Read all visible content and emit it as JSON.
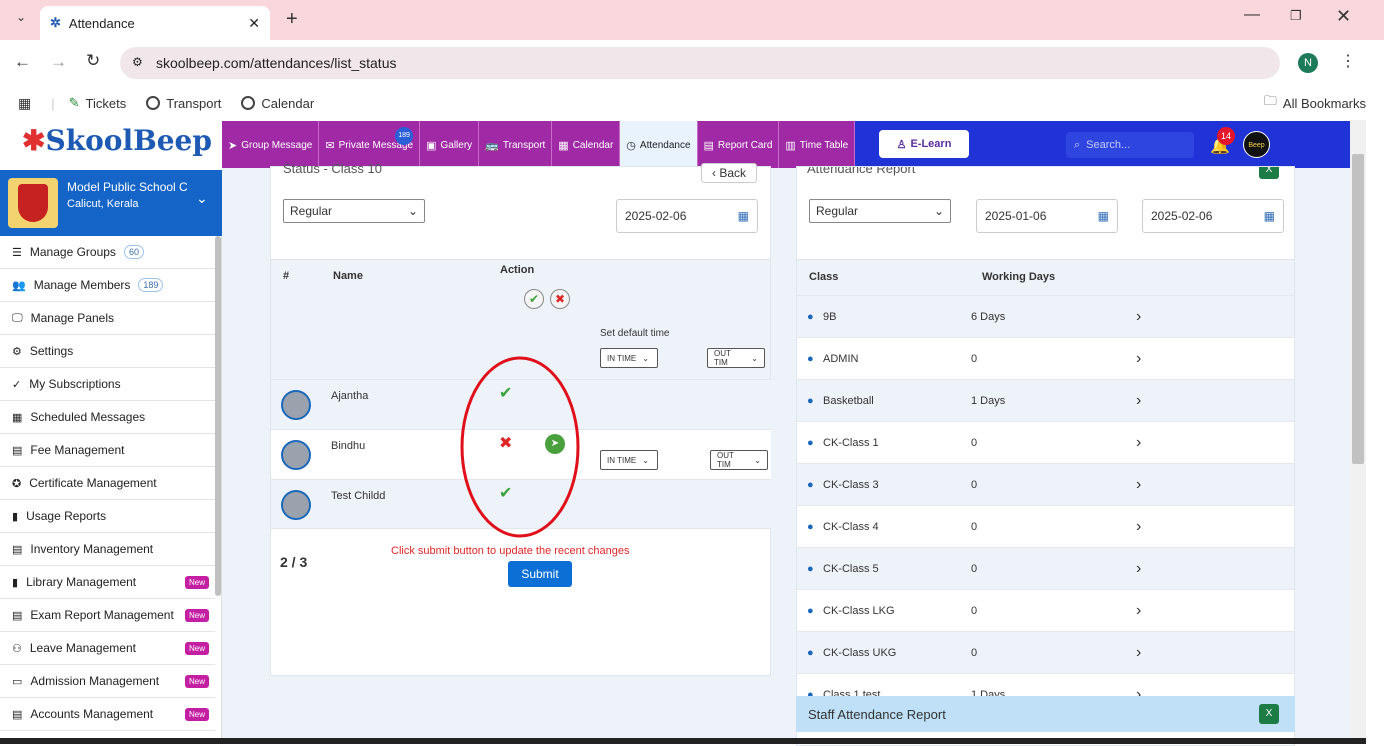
{
  "browser": {
    "tab_title": "Attendance",
    "url": "skoolbeep.com/attendances/list_status",
    "bookmarks": [
      "Tickets",
      "Transport",
      "Calendar"
    ],
    "all_bookmarks": "All Bookmarks",
    "profile_initial": "N"
  },
  "app": {
    "logo": "SkoolBeep",
    "search_placeholder": "Search...",
    "notif_count": "14",
    "avatar_text": "Beep",
    "elearn": "E-Learn"
  },
  "nav": [
    {
      "label": "Group Message",
      "icon": "send-icon"
    },
    {
      "label": "Private Message",
      "icon": "mail-icon",
      "badge": "189"
    },
    {
      "label": "Gallery",
      "icon": "image-icon"
    },
    {
      "label": "Transport",
      "icon": "bus-icon"
    },
    {
      "label": "Calendar",
      "icon": "calendar-icon"
    },
    {
      "label": "Attendance",
      "icon": "clock-icon",
      "active": true
    },
    {
      "label": "Report Card",
      "icon": "document-icon"
    },
    {
      "label": "Time Table",
      "icon": "table-icon"
    }
  ],
  "school": {
    "name": "Model Public School C",
    "location": "Calicut, Kerala"
  },
  "sidebar": [
    {
      "label": "Manage Groups",
      "count": "60",
      "icon": "list-icon"
    },
    {
      "label": "Manage Members",
      "count": "189",
      "icon": "users-icon"
    },
    {
      "label": "Manage Panels",
      "icon": "monitor-icon"
    },
    {
      "label": "Settings",
      "icon": "gear-icon"
    },
    {
      "label": "My Subscriptions",
      "icon": "check-double-icon"
    },
    {
      "label": "Scheduled Messages",
      "icon": "calendar-grid-icon"
    },
    {
      "label": "Fee Management",
      "icon": "file-icon"
    },
    {
      "label": "Certificate Management",
      "icon": "certificate-icon"
    },
    {
      "label": "Usage Reports",
      "icon": "bar-chart-icon"
    },
    {
      "label": "Inventory Management",
      "icon": "inventory-icon"
    },
    {
      "label": "Library Management",
      "new": "New",
      "icon": "book-icon"
    },
    {
      "label": "Exam Report Management",
      "new": "New",
      "icon": "file-icon"
    },
    {
      "label": "Leave Management",
      "new": "New",
      "icon": "user-slash-icon"
    },
    {
      "label": "Admission Management",
      "new": "New",
      "icon": "id-card-icon"
    },
    {
      "label": "Accounts Management",
      "new": "New",
      "icon": "file-invoice-icon"
    }
  ],
  "status": {
    "title": "Status - Class 10",
    "back": "Back",
    "mode": "Regular",
    "date": "2025-02-06",
    "col_hash": "#",
    "col_name": "Name",
    "col_action": "Action",
    "set_default": "Set default time",
    "in_time": "IN TIME",
    "out_time": "OUT TIM",
    "students": [
      {
        "name": "Ajantha",
        "status": "present"
      },
      {
        "name": "Bindhu",
        "status": "absent"
      },
      {
        "name": "Test Childd",
        "status": "present"
      }
    ],
    "page": "2 / 3",
    "notice": "Click submit button to update the recent changes",
    "submit": "Submit"
  },
  "report": {
    "title": "Attendance Report",
    "mode": "Regular",
    "from": "2025-01-06",
    "to": "2025-02-06",
    "col_class": "Class",
    "col_days": "Working Days",
    "rows": [
      {
        "class": "9B",
        "days": "6 Days"
      },
      {
        "class": "ADMIN",
        "days": "0"
      },
      {
        "class": "Basketball",
        "days": "1 Days"
      },
      {
        "class": "CK-Class 1",
        "days": "0"
      },
      {
        "class": "CK-Class 3",
        "days": "0"
      },
      {
        "class": "CK-Class 4",
        "days": "0"
      },
      {
        "class": "CK-Class 5",
        "days": "0"
      },
      {
        "class": "CK-Class LKG",
        "days": "0"
      },
      {
        "class": "CK-Class UKG",
        "days": "0"
      },
      {
        "class": "Class 1 test",
        "days": "1 Days"
      }
    ],
    "staff_title": "Staff Attendance Report"
  },
  "colors": {
    "nav": "#a02aa6",
    "header": "#1f33d6",
    "school": "#1565c8",
    "present": "#3aa23a",
    "absent": "#e02727",
    "annotation": "#e0101a"
  }
}
